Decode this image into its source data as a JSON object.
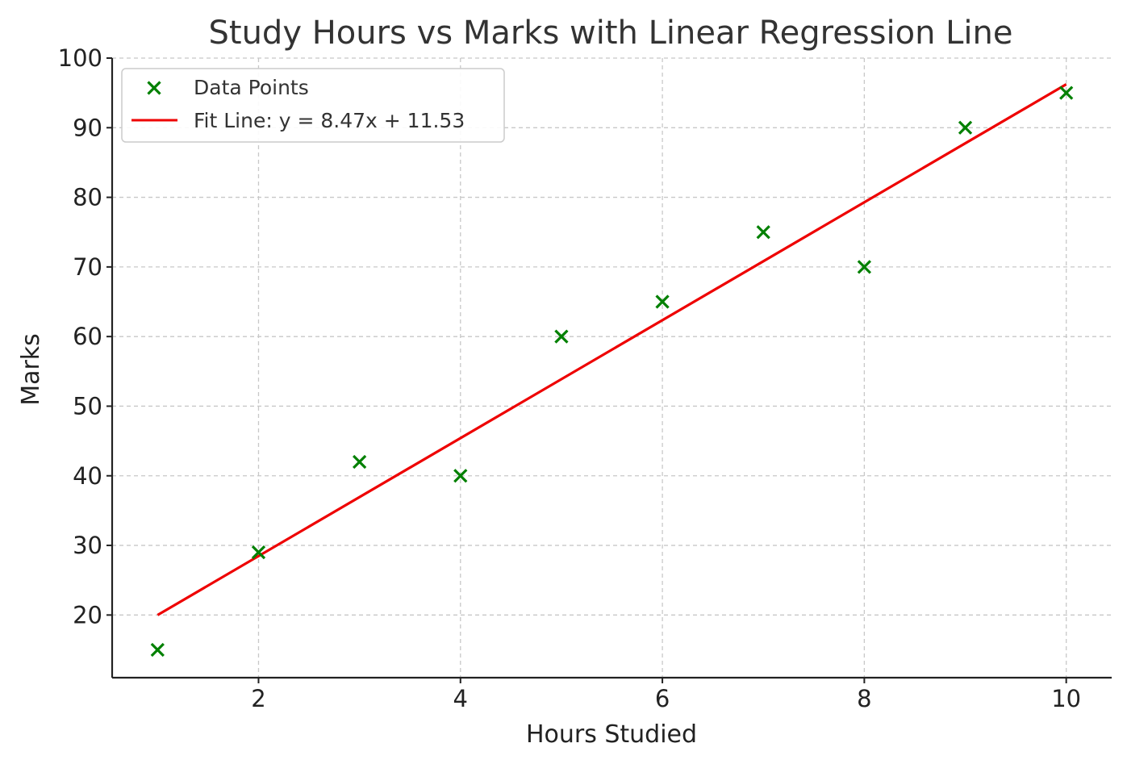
{
  "chart_data": {
    "type": "scatter",
    "title": "Study Hours vs Marks with Linear Regression Line",
    "xlabel": "Hours Studied",
    "ylabel": "Marks",
    "xlim": [
      0.55,
      10.45
    ],
    "ylim": [
      11,
      100
    ],
    "x_ticks": [
      2,
      4,
      6,
      8,
      10
    ],
    "y_ticks": [
      20,
      30,
      40,
      50,
      60,
      70,
      80,
      90,
      100
    ],
    "grid": true,
    "legend_position": "top-left",
    "series": [
      {
        "name": "Data Points",
        "kind": "scatter",
        "marker": "x",
        "color": "#008000",
        "x": [
          1,
          2,
          3,
          4,
          5,
          6,
          7,
          8,
          9,
          10
        ],
        "y": [
          15,
          29,
          42,
          40,
          60,
          65,
          75,
          70,
          90,
          95
        ]
      },
      {
        "name": "Fit Line: y = 8.47x + 11.53",
        "kind": "line",
        "color": "#ee0000",
        "slope": 8.47,
        "intercept": 11.53,
        "x": [
          1,
          10
        ],
        "y": [
          20.0,
          96.23
        ]
      }
    ]
  }
}
